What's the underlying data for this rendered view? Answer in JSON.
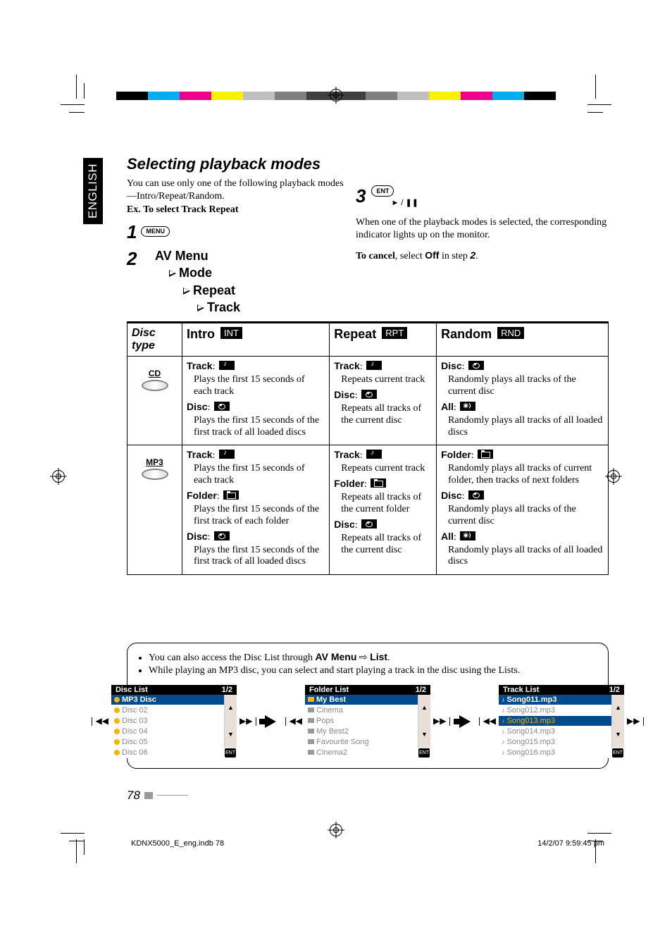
{
  "lang_tab": "ENGLISH",
  "title": "Selecting playback modes",
  "intro": {
    "line1": "You can use only one of the following playback modes—Intro/Repeat/Random.",
    "example_label": "Ex. To select Track Repeat",
    "menu_btn": "MENU",
    "menu_path": {
      "l1": "AV Menu",
      "l2": "Mode",
      "l3": "Repeat",
      "l4": "Track"
    }
  },
  "step3": {
    "ent_btn": "ENT",
    "play_glyph": "► / ❚❚",
    "para": "When one of the playback modes is selected, the corresponding indicator lights up on the monitor.",
    "cancel_lead": "To cancel",
    "cancel_mid": ", select ",
    "cancel_off": "Off",
    "cancel_tail": " in step ",
    "cancel_step": "2",
    "cancel_dot": "."
  },
  "table": {
    "head_disctype": "Disc type",
    "modes": [
      {
        "name": "Intro",
        "badge": "INT"
      },
      {
        "name": "Repeat",
        "badge": "RPT"
      },
      {
        "name": "Random",
        "badge": "RND"
      }
    ],
    "rows": [
      {
        "disc_label": "CD",
        "cells": [
          [
            {
              "k": "Track",
              "g": "note",
              "d": "Plays the first 15 seconds of each track"
            },
            {
              "k": "Disc",
              "g": "disc",
              "d": "Plays the first 15 seconds of the first track of all loaded discs"
            }
          ],
          [
            {
              "k": "Track",
              "g": "note",
              "d": "Repeats current track"
            },
            {
              "k": "Disc",
              "g": "disc",
              "d": "Repeats all tracks of the current disc"
            }
          ],
          [
            {
              "k": "Disc",
              "g": "disc",
              "d": "Randomly plays all tracks of the current disc"
            },
            {
              "k": "All",
              "g": "all",
              "d": "Randomly plays all tracks of all loaded discs"
            }
          ]
        ]
      },
      {
        "disc_label": "MP3",
        "cells": [
          [
            {
              "k": "Track",
              "g": "note",
              "d": "Plays the first 15 seconds of each track"
            },
            {
              "k": "Folder",
              "g": "folder",
              "d": "Plays the first 15 seconds of the first track of each folder"
            },
            {
              "k": "Disc",
              "g": "disc",
              "d": "Plays the first 15 seconds of the first track of all loaded discs"
            }
          ],
          [
            {
              "k": "Track",
              "g": "note",
              "d": "Repeats current track"
            },
            {
              "k": "Folder",
              "g": "folder",
              "d": "Repeats all tracks of the current folder"
            },
            {
              "k": "Disc",
              "g": "disc",
              "d": "Repeats all tracks of the current disc"
            }
          ],
          [
            {
              "k": "Folder",
              "g": "folder",
              "d": "Randomly plays all tracks of current folder, then tracks of next folders"
            },
            {
              "k": "Disc",
              "g": "disc",
              "d": "Randomly plays all tracks of the current disc"
            },
            {
              "k": "All",
              "g": "all",
              "d": "Randomly plays all tracks of all loaded discs"
            }
          ]
        ]
      }
    ]
  },
  "listnote": {
    "b1_a": "You can also access the Disc List through ",
    "b1_b": "AV Menu",
    "b1_c": " ⇨ ",
    "b1_d": "List",
    "b1_e": ".",
    "b2": "While playing an MP3 disc, you can select and start playing a track in the disc using the Lists."
  },
  "lists": [
    {
      "title": "Disc List",
      "page": "1/2",
      "type": "disc",
      "items": [
        {
          "t": "MP3 Disc",
          "sel": true
        },
        {
          "t": "Disc 02"
        },
        {
          "t": "Disc 03"
        },
        {
          "t": "Disc 04"
        },
        {
          "t": "Disc 05"
        },
        {
          "t": "Disc 06"
        }
      ]
    },
    {
      "title": "Folder List",
      "page": "1/2",
      "type": "folder",
      "items": [
        {
          "t": "My Best",
          "sel": true
        },
        {
          "t": "Cinema"
        },
        {
          "t": "Pops"
        },
        {
          "t": "My Best2"
        },
        {
          "t": "Favourite Song"
        },
        {
          "t": "Cinema2"
        }
      ]
    },
    {
      "title": "Track List",
      "page": "1/2",
      "type": "track",
      "items": [
        {
          "t": "Song011.mp3",
          "sel": true
        },
        {
          "t": "Song012.mp3"
        },
        {
          "t": "Song013.mp3",
          "hl": true
        },
        {
          "t": "Song014.mp3"
        },
        {
          "t": "Song015.mp3"
        },
        {
          "t": "Song016.mp3"
        }
      ]
    }
  ],
  "side_btns": [
    "▲",
    "▼"
  ],
  "nav_skip": [
    "❘◀◀",
    "▶▶❘"
  ],
  "ent_small": "ENT",
  "page_number": "78",
  "footer_file": "KDNX5000_E_eng.indb   78",
  "footer_time": "14/2/07   9:59:45 pm",
  "colors": {
    "blue": "#004b8d",
    "amber": "#f7b500",
    "grey": "#8a8a8a",
    "panel": "#e8e0d8"
  }
}
